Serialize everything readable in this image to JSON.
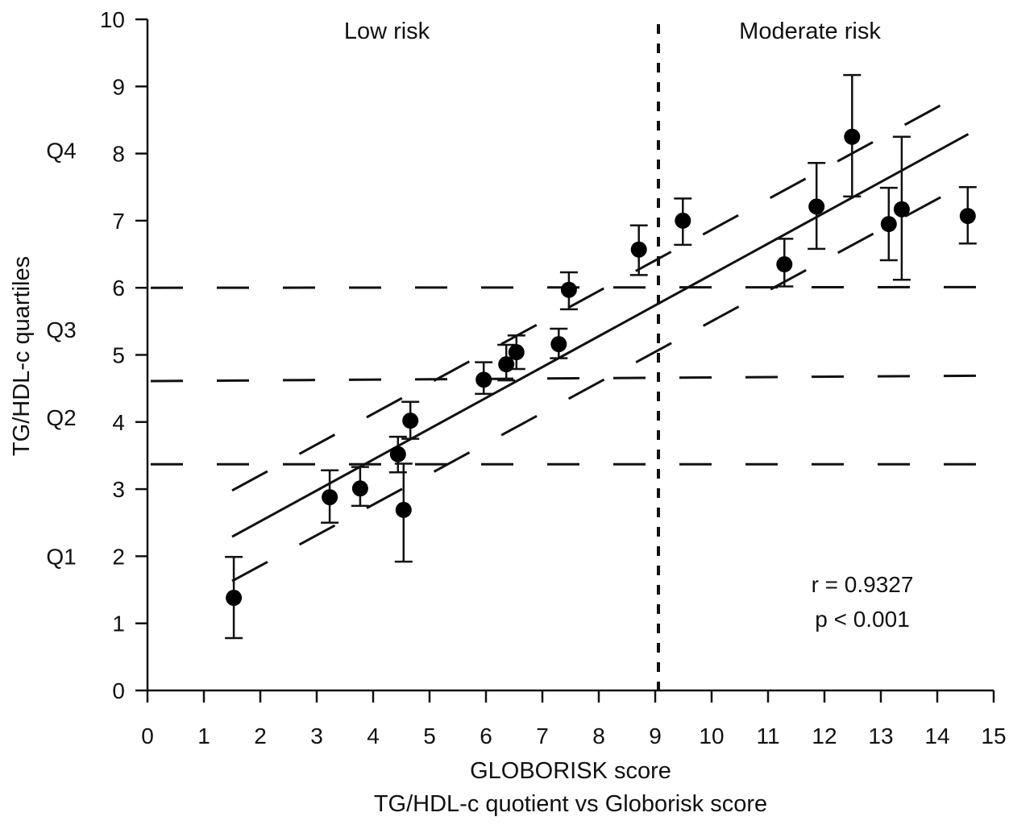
{
  "chart_data": {
    "type": "scatter",
    "title": "TG/HDL-c quotient vs Globorisk score",
    "xlabel": "GLOBORISK score",
    "ylabel": "TG/HDL-c quartiles",
    "xlim": [
      0,
      15
    ],
    "ylim": [
      0,
      10
    ],
    "xticks": [
      "0",
      "1",
      "2",
      "3",
      "4",
      "5",
      "6",
      "7",
      "8",
      "9",
      "10",
      "11",
      "12",
      "13",
      "14",
      "15"
    ],
    "yticks": [
      "0",
      "1",
      "2",
      "3",
      "4",
      "5",
      "6",
      "7",
      "8",
      "9",
      "10"
    ],
    "grid": false,
    "points": [
      {
        "x": 1.53,
        "y": 1.38,
        "err_low": 0.78,
        "err_high": 1.99
      },
      {
        "x": 3.23,
        "y": 2.88,
        "err_low": 2.5,
        "err_high": 3.28
      },
      {
        "x": 3.77,
        "y": 3.01,
        "err_low": 2.75,
        "err_high": 3.33
      },
      {
        "x": 4.44,
        "y": 3.52,
        "err_low": 3.25,
        "err_high": 3.78
      },
      {
        "x": 4.54,
        "y": 2.69,
        "err_low": 1.92,
        "err_high": 3.38
      },
      {
        "x": 4.66,
        "y": 4.02,
        "err_low": 3.75,
        "err_high": 4.3
      },
      {
        "x": 5.96,
        "y": 4.63,
        "err_low": 4.42,
        "err_high": 4.89
      },
      {
        "x": 6.36,
        "y": 4.86,
        "err_low": 4.62,
        "err_high": 5.15
      },
      {
        "x": 6.54,
        "y": 5.04,
        "err_low": 4.79,
        "err_high": 5.29
      },
      {
        "x": 7.29,
        "y": 5.16,
        "err_low": 4.95,
        "err_high": 5.39
      },
      {
        "x": 7.47,
        "y": 5.97,
        "err_low": 5.68,
        "err_high": 6.23
      },
      {
        "x": 8.71,
        "y": 6.57,
        "err_low": 6.19,
        "err_high": 6.93
      },
      {
        "x": 9.49,
        "y": 7.0,
        "err_low": 6.64,
        "err_high": 7.33
      },
      {
        "x": 11.29,
        "y": 6.35,
        "err_low": 6.02,
        "err_high": 6.73
      },
      {
        "x": 11.86,
        "y": 7.21,
        "err_low": 6.58,
        "err_high": 7.86
      },
      {
        "x": 12.49,
        "y": 8.25,
        "err_low": 7.36,
        "err_high": 9.17
      },
      {
        "x": 13.14,
        "y": 6.95,
        "err_low": 6.41,
        "err_high": 7.49
      },
      {
        "x": 13.37,
        "y": 7.17,
        "err_low": 6.12,
        "err_high": 8.25
      },
      {
        "x": 14.54,
        "y": 7.07,
        "err_low": 6.66,
        "err_high": 7.5
      }
    ],
    "regression": {
      "fit": {
        "x": [
          1.5,
          14.55
        ],
        "y": [
          2.29,
          8.29
        ]
      },
      "upper_band": {
        "x": [
          1.5,
          14.5
        ],
        "y": [
          2.98,
          8.92
        ]
      },
      "lower_band": {
        "x": [
          1.5,
          14.5
        ],
        "y": [
          1.63,
          7.55
        ]
      }
    },
    "quartile_cutoffs": [
      {
        "y_start": 6.0,
        "y_end": 6.01
      },
      {
        "y_start": 4.61,
        "y_end": 4.69
      },
      {
        "y_start": 3.37,
        "y_end": 3.37
      }
    ],
    "quartile_labels": [
      {
        "label": "Q4",
        "y": 8.05
      },
      {
        "label": "Q3",
        "y": 5.38
      },
      {
        "label": "Q2",
        "y": 4.07
      },
      {
        "label": "Q1",
        "y": 2.0
      }
    ],
    "risk_threshold_x": 9,
    "regions": [
      {
        "label": "Low risk",
        "x": 4.5
      },
      {
        "label": "Moderate risk",
        "x": 12.0
      }
    ],
    "annotations": [
      "r = 0.9327",
      "p < 0.001"
    ]
  }
}
